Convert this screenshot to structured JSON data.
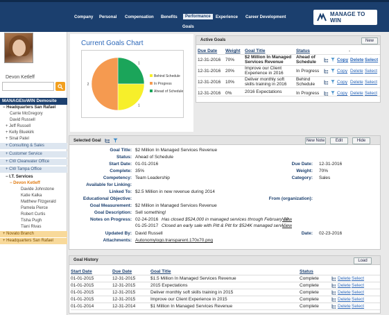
{
  "nav": {
    "items": [
      "Company",
      "Personal",
      "Compensation",
      "Benefits",
      "Performance",
      "Experience",
      "Career Development"
    ],
    "active": "Performance",
    "sub_item": "Goals",
    "logo_text": "MANAGE TO WIN"
  },
  "sidebar": {
    "username": "Devon Ketleff",
    "search_placeholder": "",
    "tree_header": "MANAGEtoWIN Demosite",
    "items": [
      "− Headquarters San Rafael",
      "Carrie McGregory",
      "David Russell",
      "+ Jeff Russell",
      "+ Kelly Bluekirk",
      "+ Sinal Patel",
      "+ Consulting & Sales",
      "+ Customer Service",
      "+ CW Clearwater Office",
      "+ CW Tampa Office",
      "− I.T. Services",
      "− Devon Ketleff",
      "Davide Johnstone",
      "Katie Kalka",
      "Matthew Fitzgerald",
      "Pamela Pierce",
      "Robert Curtis",
      "Tisha Pugh",
      "Tiani Rivas",
      "+ Novato Branch",
      "+ Headquarters San Rafael"
    ]
  },
  "chart": {
    "title": "Current Goals Chart",
    "legend": [
      "Behind Schedule",
      "In Progress",
      "Ahead of Schedule"
    ],
    "colors": [
      "#f7ef2a",
      "#f59a50",
      "#1ba55a"
    ],
    "slice_labels": [
      "1",
      "2",
      "1"
    ],
    "chart_data": {
      "type": "pie",
      "categories": [
        "Behind Schedule",
        "In Progress",
        "Ahead of Schedule"
      ],
      "values": [
        1,
        2,
        1
      ],
      "title": "Current Goals Chart",
      "legend_placement": "right"
    }
  },
  "active_goals": {
    "title": "Active Goals",
    "new_label": "New",
    "headers": [
      "Due Date",
      "Weight",
      "Goal Title",
      "Status"
    ],
    "rows": [
      {
        "due": "12-31-2016",
        "weight": "70%",
        "title": "$2 Million In Managed Services Revenue",
        "status": "Ahead of Schedule",
        "bold": true
      },
      {
        "due": "12-31-2016",
        "weight": "20%",
        "title": "Improve our Client Experience in 2016",
        "status": "In Progress",
        "bold": false
      },
      {
        "due": "12-31-2016",
        "weight": "10%",
        "title": "Deliver monthly soft skills training in 2016",
        "status": "Behind Schedule",
        "bold": false
      },
      {
        "due": "12-31-2016",
        "weight": "0%",
        "title": "2016 Expectations",
        "status": "In Progress",
        "bold": false
      }
    ],
    "actions": [
      "Copy",
      "Delete",
      "Select"
    ],
    "dash": "-"
  },
  "selected_goal": {
    "header": "Selected Goal",
    "buttons": [
      "New Note",
      "Edit",
      "Hide"
    ],
    "goal_title_label": "Goal Title:",
    "goal_title": "$2 Million In Managed Services Revenue",
    "status_label": "Status:",
    "status": "Ahead of Schedule",
    "start_date_label": "Start Date:",
    "start_date": "01-01-2016",
    "due_date_label": "Due Date:",
    "due_date": "12-31-2016",
    "complete_label": "Complete:",
    "complete": "35%",
    "weight_label": "Weight:",
    "weight": "70%",
    "competency_label": "Competency:",
    "competency": "Team Leadership",
    "category_label": "Category:",
    "category": "Sales",
    "linking_label": "Available for Linking:",
    "linked_label": "Linked To:",
    "linked": "$2.5 Million in new revenue during 2014",
    "edu_label": "Educational Objective:",
    "from_label": "From (organization):",
    "measurement_label": "Goal Measurement:",
    "measurement": "$2 Million in Managed Services Revenue",
    "description_label": "Goal Description:",
    "description": "Sell something!",
    "notes_label": "Notes on Progress:",
    "note1_date": "02-24-2016",
    "note1_text": "Has closed $524,000 in managed services through February 22.",
    "note2_date": "01-25-2017",
    "note2_text": "Closed an early sale with Pitt & Pitt for $524K managed servi...",
    "view_label": "View",
    "updated_label": "Updated By:",
    "updated_by": "David Russell",
    "date_label": "Date:",
    "date": "02-23-2016",
    "attachments_label": "Attachments:",
    "attachment": "Autonomylogo.transparent.170x70.png"
  },
  "goal_history": {
    "title": "Goal History",
    "load_label": "Load",
    "headers": [
      "Start Date",
      "Due Date",
      "Goal Title",
      "Status"
    ],
    "rows": [
      {
        "start": "01-01-2015",
        "due": "12-31-2015",
        "title": "$1.5 Million In Managed Services Revenue",
        "status": "Complete"
      },
      {
        "start": "01-01-2015",
        "due": "12-31-2015",
        "title": "2015 Expectations",
        "status": "Complete"
      },
      {
        "start": "01-01-2015",
        "due": "12-31-2015",
        "title": "Deliver monthly soft skills training in 2015",
        "status": "Complete"
      },
      {
        "start": "01-01-2015",
        "due": "12-31-2015",
        "title": "Improve our Client Experience in 2015",
        "status": "Complete"
      },
      {
        "start": "01-01-2014",
        "due": "12-31-2014",
        "title": "$1 Million In Managed Services Revenue",
        "status": "Complete"
      }
    ],
    "actions": [
      "Delete",
      "Select"
    ]
  }
}
